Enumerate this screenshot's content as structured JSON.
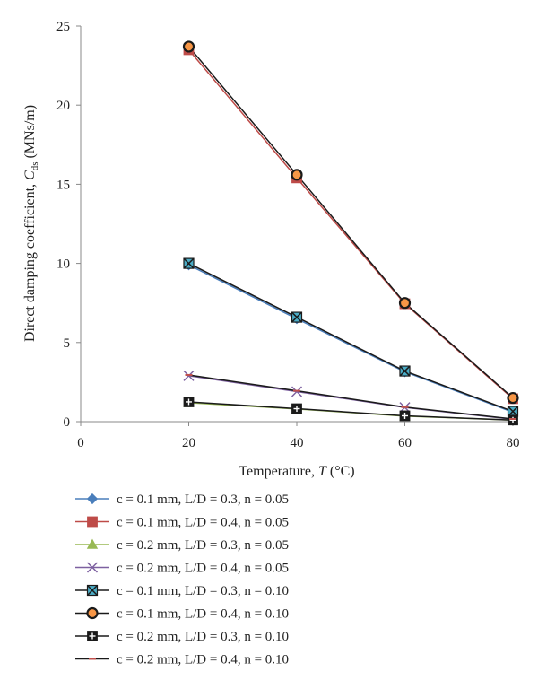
{
  "chart_data": {
    "type": "line",
    "title": "",
    "xlabel": {
      "prefix": "Temperature, ",
      "symbol": "T",
      "unit": " (°C)"
    },
    "ylabel": {
      "prefix": "Direct damping coefficient, ",
      "symbol": "C",
      "subscript": "ds",
      "unit": "  (MNs/m)"
    },
    "xlim": [
      0,
      80
    ],
    "ylim": [
      0,
      25
    ],
    "xticks": [
      0,
      20,
      40,
      60,
      80
    ],
    "yticks": [
      0,
      5,
      10,
      15,
      20,
      25
    ],
    "grid": false,
    "legend_position": "bottom",
    "x": [
      20,
      40,
      60,
      80
    ],
    "series": [
      {
        "name": "c = 0.1 mm, L/D = 0.3, n = 0.05",
        "values": [
          9.9,
          6.5,
          3.15,
          0.6
        ],
        "color": "#4a7ebb",
        "marker": "diamond"
      },
      {
        "name": "c = 0.1 mm, L/D = 0.4, n = 0.05",
        "values": [
          23.5,
          15.4,
          7.45,
          1.45
        ],
        "color": "#be4b48",
        "marker": "square"
      },
      {
        "name": "c = 0.2 mm, L/D = 0.3, n = 0.05",
        "values": [
          1.2,
          0.8,
          0.35,
          0.1
        ],
        "color": "#98b954",
        "marker": "triangle"
      },
      {
        "name": "c = 0.2 mm, L/D = 0.4, n = 0.05",
        "values": [
          2.9,
          1.9,
          0.9,
          0.15
        ],
        "color": "#7d60a0",
        "marker": "x"
      },
      {
        "name": "c = 0.1 mm, L/D = 0.3, n = 0.10",
        "values": [
          10.0,
          6.6,
          3.2,
          0.65
        ],
        "color": "#1a1a1a",
        "marker": "xsquare"
      },
      {
        "name": "c = 0.1 mm, L/D = 0.4, n = 0.10",
        "values": [
          23.7,
          15.6,
          7.5,
          1.5
        ],
        "color": "#1a1a1a",
        "marker": "circle"
      },
      {
        "name": "c = 0.2 mm, L/D = 0.3, n = 0.10",
        "values": [
          1.25,
          0.82,
          0.37,
          0.1
        ],
        "color": "#1a1a1a",
        "marker": "plussquare"
      },
      {
        "name": "c = 0.2 mm, L/D = 0.4, n = 0.10",
        "values": [
          2.95,
          1.95,
          0.92,
          0.17
        ],
        "color": "#1a1a1a",
        "marker": "dash"
      }
    ]
  }
}
